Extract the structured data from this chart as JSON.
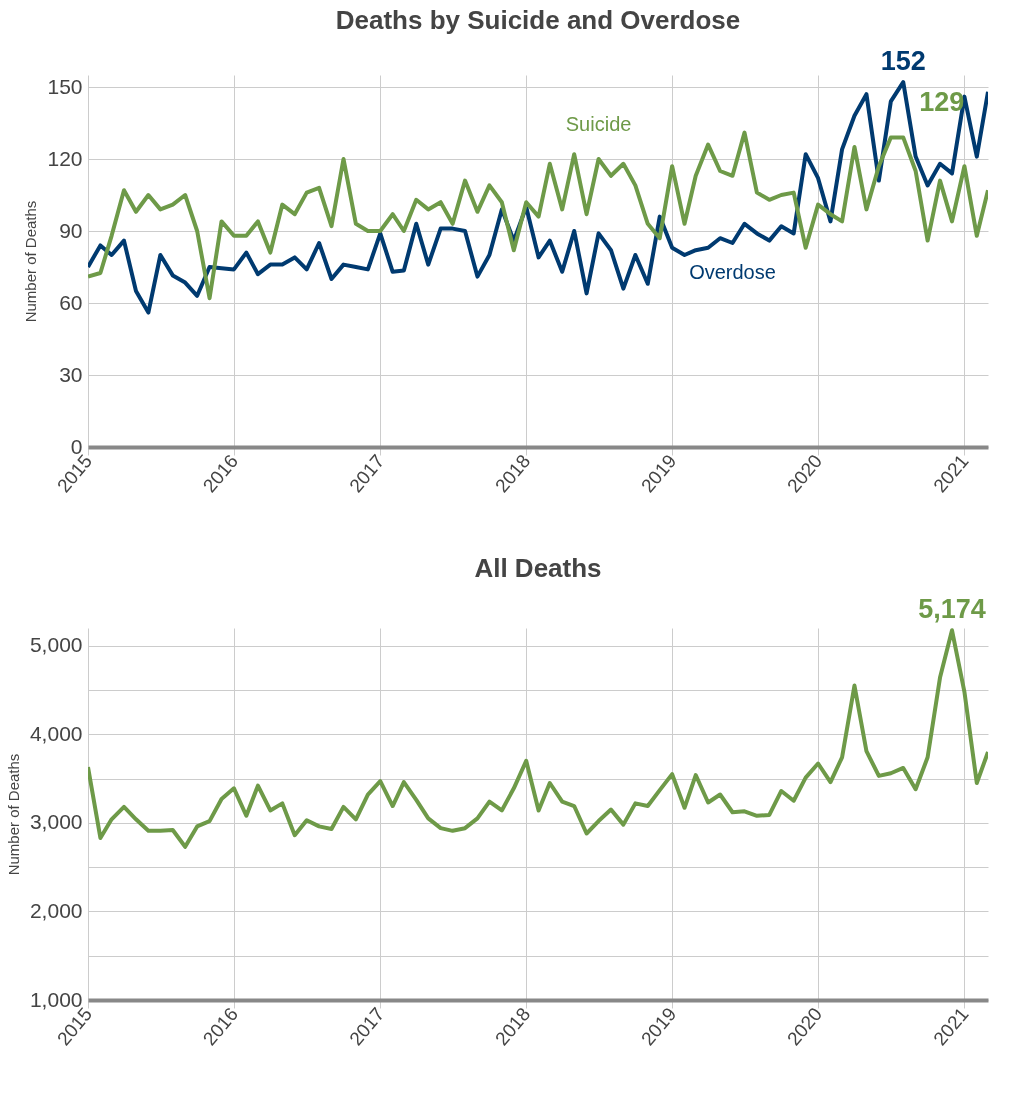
{
  "chart_data": [
    {
      "type": "line",
      "title": "Deaths by Suicide and Overdose",
      "ylabel": "Number of Deaths",
      "x": [
        "2015-01",
        "2015-02",
        "2015-03",
        "2015-04",
        "2015-05",
        "2015-06",
        "2015-07",
        "2015-08",
        "2015-09",
        "2015-10",
        "2015-11",
        "2015-12",
        "2016-01",
        "2016-02",
        "2016-03",
        "2016-04",
        "2016-05",
        "2016-06",
        "2016-07",
        "2016-08",
        "2016-09",
        "2016-10",
        "2016-11",
        "2016-12",
        "2017-01",
        "2017-02",
        "2017-03",
        "2017-04",
        "2017-05",
        "2017-06",
        "2017-07",
        "2017-08",
        "2017-09",
        "2017-10",
        "2017-11",
        "2017-12",
        "2018-01",
        "2018-02",
        "2018-03",
        "2018-04",
        "2018-05",
        "2018-06",
        "2018-07",
        "2018-08",
        "2018-09",
        "2018-10",
        "2018-11",
        "2018-12",
        "2019-01",
        "2019-02",
        "2019-03",
        "2019-04",
        "2019-05",
        "2019-06",
        "2019-07",
        "2019-08",
        "2019-09",
        "2019-10",
        "2019-11",
        "2019-12",
        "2020-01",
        "2020-02",
        "2020-03",
        "2020-04",
        "2020-05",
        "2020-06",
        "2020-07",
        "2020-08",
        "2020-09",
        "2020-10",
        "2020-11",
        "2020-12",
        "2021-01",
        "2021-02",
        "2021-03"
      ],
      "series": [
        {
          "name": "Overdose",
          "color": "#003a70",
          "values": [
            75,
            84,
            80,
            86,
            65,
            56,
            80,
            71.5,
            68.5,
            63,
            75,
            74.5,
            74,
            81,
            72,
            76,
            76,
            79,
            74,
            85,
            70,
            76,
            75,
            74,
            89,
            73,
            73.5,
            93,
            76,
            91,
            91,
            90,
            71,
            80,
            99,
            86,
            100,
            79,
            86,
            73,
            90,
            64,
            89,
            82,
            66,
            80,
            68,
            96,
            83,
            80,
            82,
            83,
            87,
            85,
            93,
            89,
            86,
            92,
            89,
            122,
            112,
            94,
            124,
            138,
            147,
            111,
            144,
            152,
            121,
            109,
            118,
            114,
            146,
            121,
            148
          ],
          "value_labels": [
            null,
            null,
            null,
            null,
            null,
            null,
            null,
            null,
            null,
            null,
            null,
            null,
            null,
            null,
            null,
            null,
            null,
            null,
            null,
            null,
            null,
            null,
            null,
            null,
            null,
            null,
            null,
            null,
            null,
            null,
            null,
            null,
            null,
            null,
            null,
            null,
            null,
            null,
            null,
            null,
            null,
            null,
            null,
            null,
            null,
            null,
            null,
            null,
            null,
            null,
            null,
            null,
            null,
            null,
            null,
            null,
            null,
            null,
            null,
            null,
            null,
            null,
            null,
            null,
            null,
            null,
            null,
            "152",
            null,
            null,
            null,
            null,
            null,
            null,
            null
          ]
        },
        {
          "name": "Suicide",
          "color": "#6e9a48",
          "values": [
            71,
            72.5,
            88,
            107,
            98,
            105,
            99,
            101,
            105,
            90,
            62,
            94,
            88,
            88,
            94,
            81,
            101,
            97,
            106,
            108,
            92,
            120,
            93,
            90,
            90,
            97,
            90,
            103,
            99,
            102,
            93,
            111,
            98,
            109,
            102,
            82,
            102,
            96,
            118,
            99,
            122,
            97,
            120,
            113,
            118,
            109,
            93,
            87,
            117,
            93,
            113,
            126,
            115,
            113,
            131,
            106,
            103,
            105,
            106,
            83,
            101,
            97,
            94,
            125,
            99,
            117,
            129,
            129,
            115,
            86,
            111,
            94,
            117,
            88,
            107
          ],
          "value_labels": [
            null,
            null,
            null,
            null,
            null,
            null,
            null,
            null,
            null,
            null,
            null,
            null,
            null,
            null,
            null,
            null,
            null,
            null,
            null,
            null,
            null,
            null,
            null,
            null,
            null,
            null,
            null,
            null,
            null,
            null,
            null,
            null,
            null,
            null,
            null,
            null,
            null,
            null,
            null,
            null,
            null,
            null,
            null,
            null,
            null,
            null,
            null,
            null,
            null,
            null,
            null,
            null,
            null,
            null,
            null,
            null,
            null,
            null,
            null,
            null,
            null,
            null,
            null,
            null,
            null,
            null,
            null,
            "129",
            null,
            null,
            null,
            null,
            null,
            null,
            null
          ]
        }
      ],
      "xlim": [
        "2015-01",
        "2021-03"
      ],
      "xticks": [
        {
          "value": "2015",
          "label": "2015"
        },
        {
          "value": "2016",
          "label": "2016"
        },
        {
          "value": "2017",
          "label": "2017"
        },
        {
          "value": "2018",
          "label": "2018"
        },
        {
          "value": "2019",
          "label": "2019"
        },
        {
          "value": "2020",
          "label": "2020"
        },
        {
          "value": "2021",
          "label": "2021"
        }
      ],
      "ylim": [
        0,
        155
      ],
      "yticks": [
        0,
        30,
        60,
        90,
        120,
        150
      ],
      "grid": true,
      "legend": false,
      "marker": "none",
      "line_style": "solid"
    },
    {
      "type": "line",
      "title": "All Deaths",
      "ylabel": "Number of Deaths",
      "color": "#6e9a48",
      "x": [
        "2015-01",
        "2015-02",
        "2015-03",
        "2015-04",
        "2015-05",
        "2015-06",
        "2015-07",
        "2015-08",
        "2015-09",
        "2015-10",
        "2015-11",
        "2015-12",
        "2016-01",
        "2016-02",
        "2016-03",
        "2016-04",
        "2016-05",
        "2016-06",
        "2016-07",
        "2016-08",
        "2016-09",
        "2016-10",
        "2016-11",
        "2016-12",
        "2017-01",
        "2017-02",
        "2017-03",
        "2017-04",
        "2017-05",
        "2017-06",
        "2017-07",
        "2017-08",
        "2017-09",
        "2017-10",
        "2017-11",
        "2017-12",
        "2018-01",
        "2018-02",
        "2018-03",
        "2018-04",
        "2018-05",
        "2018-06",
        "2018-07",
        "2018-08",
        "2018-09",
        "2018-10",
        "2018-11",
        "2018-12",
        "2019-01",
        "2019-02",
        "2019-03",
        "2019-04",
        "2019-05",
        "2019-06",
        "2019-07",
        "2019-08",
        "2019-09",
        "2019-10",
        "2019-11",
        "2019-12",
        "2020-01",
        "2020-02",
        "2020-03",
        "2020-04",
        "2020-05",
        "2020-06",
        "2020-07",
        "2020-08",
        "2020-09",
        "2020-10",
        "2020-11",
        "2020-12",
        "2021-01",
        "2021-02",
        "2021-03"
      ],
      "values": [
        3630,
        2830,
        3040,
        3180,
        3040,
        2910,
        2910,
        2920,
        2730,
        2960,
        3020,
        3270,
        3390,
        3080,
        3420,
        3140,
        3220,
        2860,
        3030,
        2960,
        2930,
        3180,
        3040,
        3320,
        3470,
        3190,
        3460,
        3260,
        3050,
        2940,
        2910,
        2940,
        3050,
        3240,
        3140,
        3390,
        3700,
        3140,
        3450,
        3240,
        3190,
        2880,
        3020,
        3150,
        2980,
        3220,
        3190,
        3370,
        3550,
        3170,
        3540,
        3230,
        3320,
        3120,
        3130,
        3080,
        3090,
        3360,
        3250,
        3510,
        3670,
        3460,
        3740,
        4550,
        3810,
        3530,
        3560,
        3620,
        3380,
        3740,
        4640,
        5174,
        4480,
        3450,
        3800
      ],
      "value_labels": [
        null,
        null,
        null,
        null,
        null,
        null,
        null,
        null,
        null,
        null,
        null,
        null,
        null,
        null,
        null,
        null,
        null,
        null,
        null,
        null,
        null,
        null,
        null,
        null,
        null,
        null,
        null,
        null,
        null,
        null,
        null,
        null,
        null,
        null,
        null,
        null,
        null,
        null,
        null,
        null,
        null,
        null,
        null,
        null,
        null,
        null,
        null,
        null,
        null,
        null,
        null,
        null,
        null,
        null,
        null,
        null,
        null,
        null,
        null,
        null,
        null,
        null,
        null,
        null,
        null,
        null,
        null,
        null,
        null,
        null,
        null,
        "5,174",
        null,
        null,
        null
      ],
      "xlim": [
        "2015-01",
        "2021-03"
      ],
      "xticks": [
        {
          "value": "2015",
          "label": "2015"
        },
        {
          "value": "2016",
          "label": "2016"
        },
        {
          "value": "2017",
          "label": "2017"
        },
        {
          "value": "2018",
          "label": "2018"
        },
        {
          "value": "2019",
          "label": "2019"
        },
        {
          "value": "2020",
          "label": "2020"
        },
        {
          "value": "2021",
          "label": "2021"
        }
      ],
      "ylim": [
        1000,
        5200
      ],
      "yticks": [
        {
          "value": 1000,
          "label": "1,000"
        },
        {
          "value": 1500,
          "label": null
        },
        {
          "value": 2000,
          "label": "2,000"
        },
        {
          "value": 2500,
          "label": null
        },
        {
          "value": 3000,
          "label": "3,000"
        },
        {
          "value": 3500,
          "label": null
        },
        {
          "value": 4000,
          "label": "4,000"
        },
        {
          "value": 4500,
          "label": null
        },
        {
          "value": 5000,
          "label": "5,000"
        }
      ],
      "grid": true,
      "legend": false,
      "marker": "none",
      "line_style": "solid"
    }
  ]
}
